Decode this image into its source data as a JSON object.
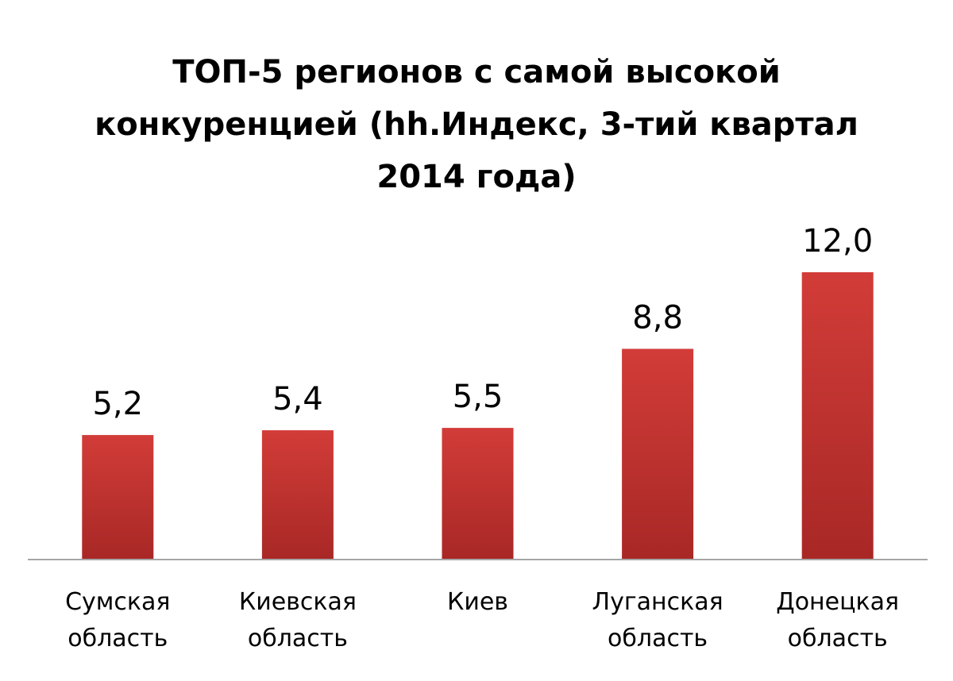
{
  "chart_data": {
    "type": "bar",
    "title_lines": [
      "ТОП-5 регионов с самой высокой",
      "конкуренцией (hh.Индекс, 3-тий квартал",
      "2014 года)"
    ],
    "categories": [
      [
        "Сумская",
        "область"
      ],
      [
        "Киевская",
        "область"
      ],
      [
        "Киев"
      ],
      [
        "Луганская",
        "область"
      ],
      [
        "Донецкая",
        "область"
      ]
    ],
    "values": [
      5.2,
      5.4,
      5.5,
      8.8,
      12.0
    ],
    "data_labels": [
      "5,2",
      "5,4",
      "5,5",
      "8,8",
      "12,0"
    ],
    "ylim": [
      0,
      12.0
    ],
    "grid": false,
    "legend": "none",
    "bar_color": "#c0322f",
    "axis_color": "#a6a6a6"
  }
}
